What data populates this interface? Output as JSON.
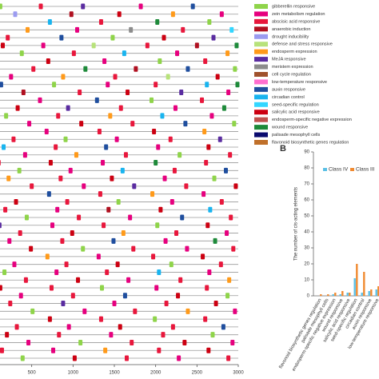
{
  "chart_data": [
    {
      "type": "track",
      "xlim": [
        0,
        3000
      ],
      "xticks": [
        500,
        1000,
        1500,
        2000,
        2500,
        3000
      ],
      "classes": [
        {
          "name": "gibberellin responsive",
          "color": "#8fd44a"
        },
        {
          "name": "zein metabolism regulation",
          "color": "#e6007e"
        },
        {
          "name": "abscisic acid responsive",
          "color": "#e8173c"
        },
        {
          "name": "anaerobic induction",
          "color": "#b01020"
        },
        {
          "name": "drought inducibility",
          "color": "#9b9bf0"
        },
        {
          "name": "defense and stress responsive",
          "color": "#b7e27a"
        },
        {
          "name": "endosperm expression",
          "color": "#ff9a1a"
        },
        {
          "name": "MeJA responsive",
          "color": "#5a2ca0"
        },
        {
          "name": "meristem expression",
          "color": "#8c8c8c"
        },
        {
          "name": "cell cycle regulation",
          "color": "#a0522d"
        },
        {
          "name": "low-temperature responsive",
          "color": "#ff6fcf"
        },
        {
          "name": "auxin responsive",
          "color": "#1f4e9e"
        },
        {
          "name": "circadian control",
          "color": "#19b4ef"
        },
        {
          "name": "seed-specific regulation",
          "color": "#33d6ff"
        },
        {
          "name": "salicylic acid responsive",
          "color": "#cc0011"
        },
        {
          "name": "endosperm-specific negative expression",
          "color": "#c0504d"
        },
        {
          "name": "wound responsive",
          "color": "#1e8a3a"
        },
        {
          "name": "palisade mesophyll cells",
          "color": "#0a0a6e"
        },
        {
          "name": "flavonoid biosynthetic genes regulation",
          "color": "#c0702a"
        }
      ],
      "rows": [
        [
          [
            120,
            0
          ],
          [
            610,
            2
          ],
          [
            1120,
            7
          ],
          [
            1820,
            1
          ],
          [
            2450,
            11
          ]
        ],
        [
          [
            300,
            4
          ],
          [
            980,
            3
          ],
          [
            1560,
            14
          ],
          [
            2210,
            6
          ],
          [
            2800,
            1
          ]
        ],
        [
          [
            80,
            1
          ],
          [
            720,
            12
          ],
          [
            1340,
            2
          ],
          [
            2020,
            16
          ],
          [
            2650,
            0
          ]
        ],
        [
          [
            450,
            6
          ],
          [
            1050,
            1
          ],
          [
            1700,
            8
          ],
          [
            2330,
            2
          ],
          [
            2920,
            13
          ]
        ],
        [
          [
            210,
            2
          ],
          [
            860,
            11
          ],
          [
            1480,
            0
          ],
          [
            2100,
            14
          ],
          [
            2700,
            7
          ]
        ],
        [
          [
            150,
            14
          ],
          [
            640,
            1
          ],
          [
            1250,
            5
          ],
          [
            1900,
            2
          ],
          [
            2500,
            3
          ],
          [
            2980,
            16
          ]
        ],
        [
          [
            380,
            0
          ],
          [
            1010,
            2
          ],
          [
            1620,
            12
          ],
          [
            2260,
            1
          ],
          [
            2870,
            6
          ]
        ],
        [
          [
            60,
            7
          ],
          [
            700,
            14
          ],
          [
            1380,
            1
          ],
          [
            2050,
            0
          ],
          [
            2600,
            2
          ]
        ],
        [
          [
            520,
            2
          ],
          [
            1150,
            16
          ],
          [
            1760,
            3
          ],
          [
            2390,
            11
          ],
          [
            2960,
            0
          ]
        ],
        [
          [
            250,
            1
          ],
          [
            880,
            6
          ],
          [
            1510,
            2
          ],
          [
            2150,
            5
          ],
          [
            2750,
            14
          ]
        ],
        [
          [
            130,
            11
          ],
          [
            770,
            0
          ],
          [
            1420,
            1
          ],
          [
            2000,
            2
          ],
          [
            2620,
            12
          ],
          [
            2990,
            16
          ]
        ],
        [
          [
            400,
            3
          ],
          [
            1080,
            2
          ],
          [
            1660,
            14
          ],
          [
            2310,
            7
          ],
          [
            2880,
            1
          ]
        ],
        [
          [
            90,
            2
          ],
          [
            600,
            1
          ],
          [
            1290,
            11
          ],
          [
            1950,
            0
          ],
          [
            2560,
            2
          ]
        ],
        [
          [
            330,
            14
          ],
          [
            940,
            7
          ],
          [
            1580,
            2
          ],
          [
            2240,
            1
          ],
          [
            2830,
            16
          ]
        ],
        [
          [
            190,
            0
          ],
          [
            820,
            2
          ],
          [
            1450,
            6
          ],
          [
            2080,
            12
          ],
          [
            2680,
            1
          ]
        ],
        [
          [
            470,
            1
          ],
          [
            1100,
            14
          ],
          [
            1720,
            2
          ],
          [
            2360,
            11
          ],
          [
            2950,
            0
          ]
        ],
        [
          [
            40,
            5
          ],
          [
            680,
            1
          ],
          [
            1320,
            2
          ],
          [
            1980,
            14
          ],
          [
            2590,
            6
          ]
        ],
        [
          [
            280,
            2
          ],
          [
            910,
            0
          ],
          [
            1530,
            1
          ],
          [
            2180,
            2
          ],
          [
            2780,
            7
          ]
        ],
        [
          [
            160,
            12
          ],
          [
            790,
            2
          ],
          [
            1400,
            11
          ],
          [
            2030,
            1
          ],
          [
            2640,
            14
          ]
        ],
        [
          [
            420,
            1
          ],
          [
            1040,
            6
          ],
          [
            1640,
            2
          ],
          [
            2290,
            0
          ],
          [
            2900,
            2
          ]
        ],
        [
          [
            100,
            2
          ],
          [
            730,
            14
          ],
          [
            1360,
            1
          ],
          [
            2000,
            16
          ],
          [
            2610,
            2
          ]
        ],
        [
          [
            350,
            0
          ],
          [
            970,
            1
          ],
          [
            1600,
            12
          ],
          [
            2230,
            2
          ],
          [
            2850,
            11
          ]
        ],
        [
          [
            220,
            6
          ],
          [
            850,
            2
          ],
          [
            1470,
            14
          ],
          [
            2110,
            1
          ],
          [
            2710,
            0
          ]
        ],
        [
          [
            500,
            2
          ],
          [
            1130,
            1
          ],
          [
            1740,
            7
          ],
          [
            2370,
            2
          ],
          [
            2970,
            14
          ]
        ],
        [
          [
            70,
            1
          ],
          [
            710,
            11
          ],
          [
            1330,
            2
          ],
          [
            1960,
            6
          ],
          [
            2580,
            1
          ]
        ],
        [
          [
            310,
            14
          ],
          [
            930,
            2
          ],
          [
            1550,
            0
          ],
          [
            2200,
            1
          ],
          [
            2800,
            2
          ]
        ],
        [
          [
            180,
            2
          ],
          [
            810,
            1
          ],
          [
            1430,
            3
          ],
          [
            2060,
            14
          ],
          [
            2660,
            12
          ]
        ],
        [
          [
            440,
            0
          ],
          [
            1070,
            2
          ],
          [
            1690,
            1
          ],
          [
            2320,
            11
          ],
          [
            2910,
            2
          ]
        ],
        [
          [
            110,
            7
          ],
          [
            750,
            1
          ],
          [
            1370,
            2
          ],
          [
            2020,
            0
          ],
          [
            2630,
            14
          ]
        ],
        [
          [
            360,
            2
          ],
          [
            990,
            14
          ],
          [
            1610,
            6
          ],
          [
            2250,
            2
          ],
          [
            2860,
            1
          ]
        ],
        [
          [
            230,
            1
          ],
          [
            870,
            2
          ],
          [
            1490,
            11
          ],
          [
            2120,
            1
          ],
          [
            2720,
            16
          ]
        ],
        [
          [
            490,
            14
          ],
          [
            1120,
            0
          ],
          [
            1730,
            2
          ],
          [
            2380,
            1
          ],
          [
            2940,
            2
          ]
        ],
        [
          [
            50,
            2
          ],
          [
            690,
            6
          ],
          [
            1310,
            1
          ],
          [
            1970,
            2
          ],
          [
            2570,
            14
          ]
        ],
        [
          [
            290,
            1
          ],
          [
            920,
            2
          ],
          [
            1540,
            14
          ],
          [
            2190,
            0
          ],
          [
            2790,
            2
          ]
        ],
        [
          [
            170,
            0
          ],
          [
            800,
            1
          ],
          [
            1410,
            2
          ],
          [
            2040,
            12
          ],
          [
            2650,
            1
          ]
        ],
        [
          [
            430,
            2
          ],
          [
            1060,
            14
          ],
          [
            1670,
            1
          ],
          [
            2300,
            2
          ],
          [
            2890,
            6
          ]
        ],
        [
          [
            120,
            14
          ],
          [
            740,
            2
          ],
          [
            1350,
            0
          ],
          [
            2010,
            1
          ],
          [
            2620,
            2
          ]
        ],
        [
          [
            370,
            1
          ],
          [
            1000,
            2
          ],
          [
            1630,
            11
          ],
          [
            2270,
            14
          ],
          [
            2870,
            0
          ]
        ],
        [
          [
            240,
            2
          ],
          [
            880,
            7
          ],
          [
            1500,
            1
          ],
          [
            2130,
            2
          ],
          [
            2730,
            14
          ]
        ],
        [
          [
            510,
            0
          ],
          [
            1140,
            1
          ],
          [
            1750,
            2
          ],
          [
            2390,
            6
          ],
          [
            2960,
            1
          ]
        ],
        [
          [
            80,
            1
          ],
          [
            720,
            14
          ],
          [
            1340,
            2
          ],
          [
            1990,
            0
          ],
          [
            2600,
            2
          ]
        ],
        [
          [
            320,
            2
          ],
          [
            950,
            1
          ],
          [
            1570,
            14
          ],
          [
            2210,
            2
          ],
          [
            2820,
            11
          ]
        ],
        [
          [
            200,
            14
          ],
          [
            830,
            2
          ],
          [
            1460,
            1
          ],
          [
            2090,
            2
          ],
          [
            2690,
            0
          ]
        ],
        [
          [
            460,
            1
          ],
          [
            1090,
            0
          ],
          [
            1710,
            2
          ],
          [
            2350,
            14
          ],
          [
            2930,
            1
          ]
        ],
        [
          [
            140,
            2
          ],
          [
            760,
            1
          ],
          [
            1390,
            6
          ],
          [
            2040,
            2
          ],
          [
            2640,
            14
          ]
        ],
        [
          [
            390,
            0
          ],
          [
            1020,
            14
          ],
          [
            1650,
            2
          ],
          [
            2280,
            1
          ],
          [
            2880,
            2
          ]
        ]
      ]
    },
    {
      "type": "bar",
      "panel": "B",
      "ylabel": "The number of cis-acting elements",
      "ylim": [
        0,
        90
      ],
      "yticks": [
        0,
        10,
        20,
        30,
        40,
        50,
        60,
        70,
        80,
        90
      ],
      "categories": [
        "flavonoid biosynthetic genes regulation",
        "palisade mesophyll cells",
        "endosperm-specific negative expression",
        "wound responsive",
        "salicylic acid responsive",
        "seed-specific regulation",
        "circadian control",
        "auxin responsive",
        "low-temperature responsive"
      ],
      "series": [
        {
          "name": "Class IV",
          "color": "#5bc0e6",
          "values": [
            0,
            0,
            1,
            1,
            2,
            11,
            2,
            3,
            4
          ]
        },
        {
          "name": "Class III",
          "color": "#f08a30",
          "values": [
            1,
            1,
            2,
            3,
            2,
            20,
            15,
            4,
            6
          ]
        }
      ]
    }
  ]
}
